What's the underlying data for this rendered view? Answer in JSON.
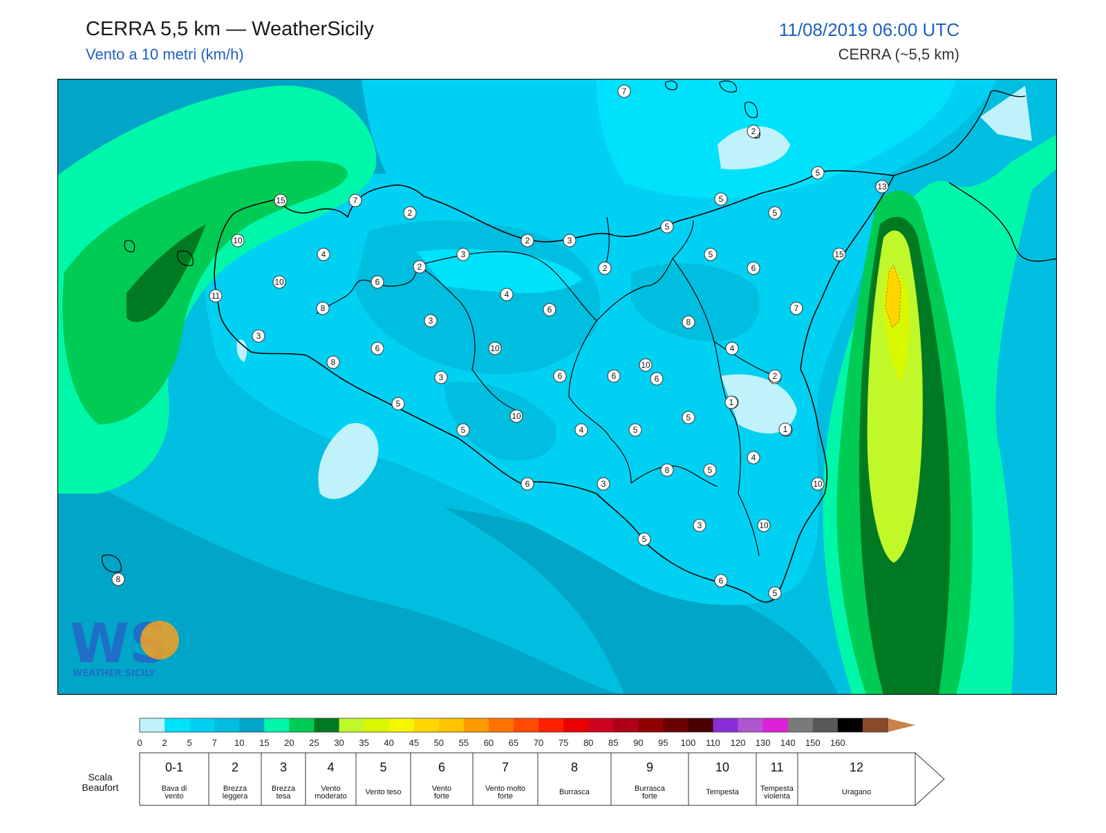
{
  "header": {
    "title": "CERRA 5,5 km — WeatherSicily",
    "subtitle": "Vento a 10 metri (km/h)",
    "datetime": "11/08/2019 06:00 UTC",
    "model": "CERRA (~5,5 km)"
  },
  "logo": {
    "letters": "WS",
    "text": "WEATHER SICILY"
  },
  "map": {
    "stations": [
      7,
      2,
      5,
      13,
      15,
      7,
      2,
      2,
      3,
      5,
      5,
      5,
      10,
      4,
      3,
      2,
      10,
      6,
      4,
      2,
      6,
      5,
      6,
      11,
      3,
      8,
      6,
      3,
      10,
      8,
      15,
      7,
      8,
      4,
      3,
      6,
      6,
      10,
      4,
      6,
      2,
      5,
      1,
      5,
      4,
      5,
      10,
      3,
      5,
      4,
      8,
      5,
      10,
      3,
      6,
      3,
      10,
      5,
      6,
      5,
      8,
      1,
      4,
      1
    ]
  },
  "legend": {
    "colors": [
      "#bff2fb",
      "#00e2fb",
      "#00d1f2",
      "#00bedf",
      "#00a5c7",
      "#00f7aa",
      "#00cb55",
      "#007a22",
      "#c0f82a",
      "#d8f800",
      "#f6f600",
      "#ffd700",
      "#ffc400",
      "#ff9a00",
      "#ff7300",
      "#ff4c00",
      "#ff2000",
      "#ea0000",
      "#d00020",
      "#b00018",
      "#900000",
      "#6a0000",
      "#4a0000",
      "#8a2fd8",
      "#b055d0",
      "#e020d8",
      "#7a7a7a",
      "#585858",
      "#000000",
      "#8a4a2a",
      "#c88248"
    ],
    "ticks": [
      "0",
      "2",
      "5",
      "7",
      "10",
      "15",
      "20",
      "25",
      "30",
      "35",
      "40",
      "45",
      "50",
      "55",
      "60",
      "65",
      "70",
      "75",
      "80",
      "85",
      "90",
      "95",
      "100",
      "110",
      "120",
      "130",
      "140",
      "150",
      "160"
    ],
    "scale_label_1": "Scala",
    "scale_label_2": "Beaufort",
    "beaufort": [
      {
        "num": "0-1",
        "l1": "Bava di",
        "l2": "vento"
      },
      {
        "num": "2",
        "l1": "Brezza",
        "l2": "leggera"
      },
      {
        "num": "3",
        "l1": "Brezza",
        "l2": "tesa"
      },
      {
        "num": "4",
        "l1": "Vento",
        "l2": "moderato"
      },
      {
        "num": "5",
        "l1": "Vento teso",
        "l2": ""
      },
      {
        "num": "6",
        "l1": "Vento",
        "l2": "forte"
      },
      {
        "num": "7",
        "l1": "Vento molto",
        "l2": "forte"
      },
      {
        "num": "8",
        "l1": "Burrasca",
        "l2": ""
      },
      {
        "num": "9",
        "l1": "Burrasca",
        "l2": "forte"
      },
      {
        "num": "10",
        "l1": "Tempesta",
        "l2": ""
      },
      {
        "num": "11",
        "l1": "Tempesta",
        "l2": "violenta"
      },
      {
        "num": "12",
        "l1": "Uragano",
        "l2": ""
      }
    ]
  }
}
